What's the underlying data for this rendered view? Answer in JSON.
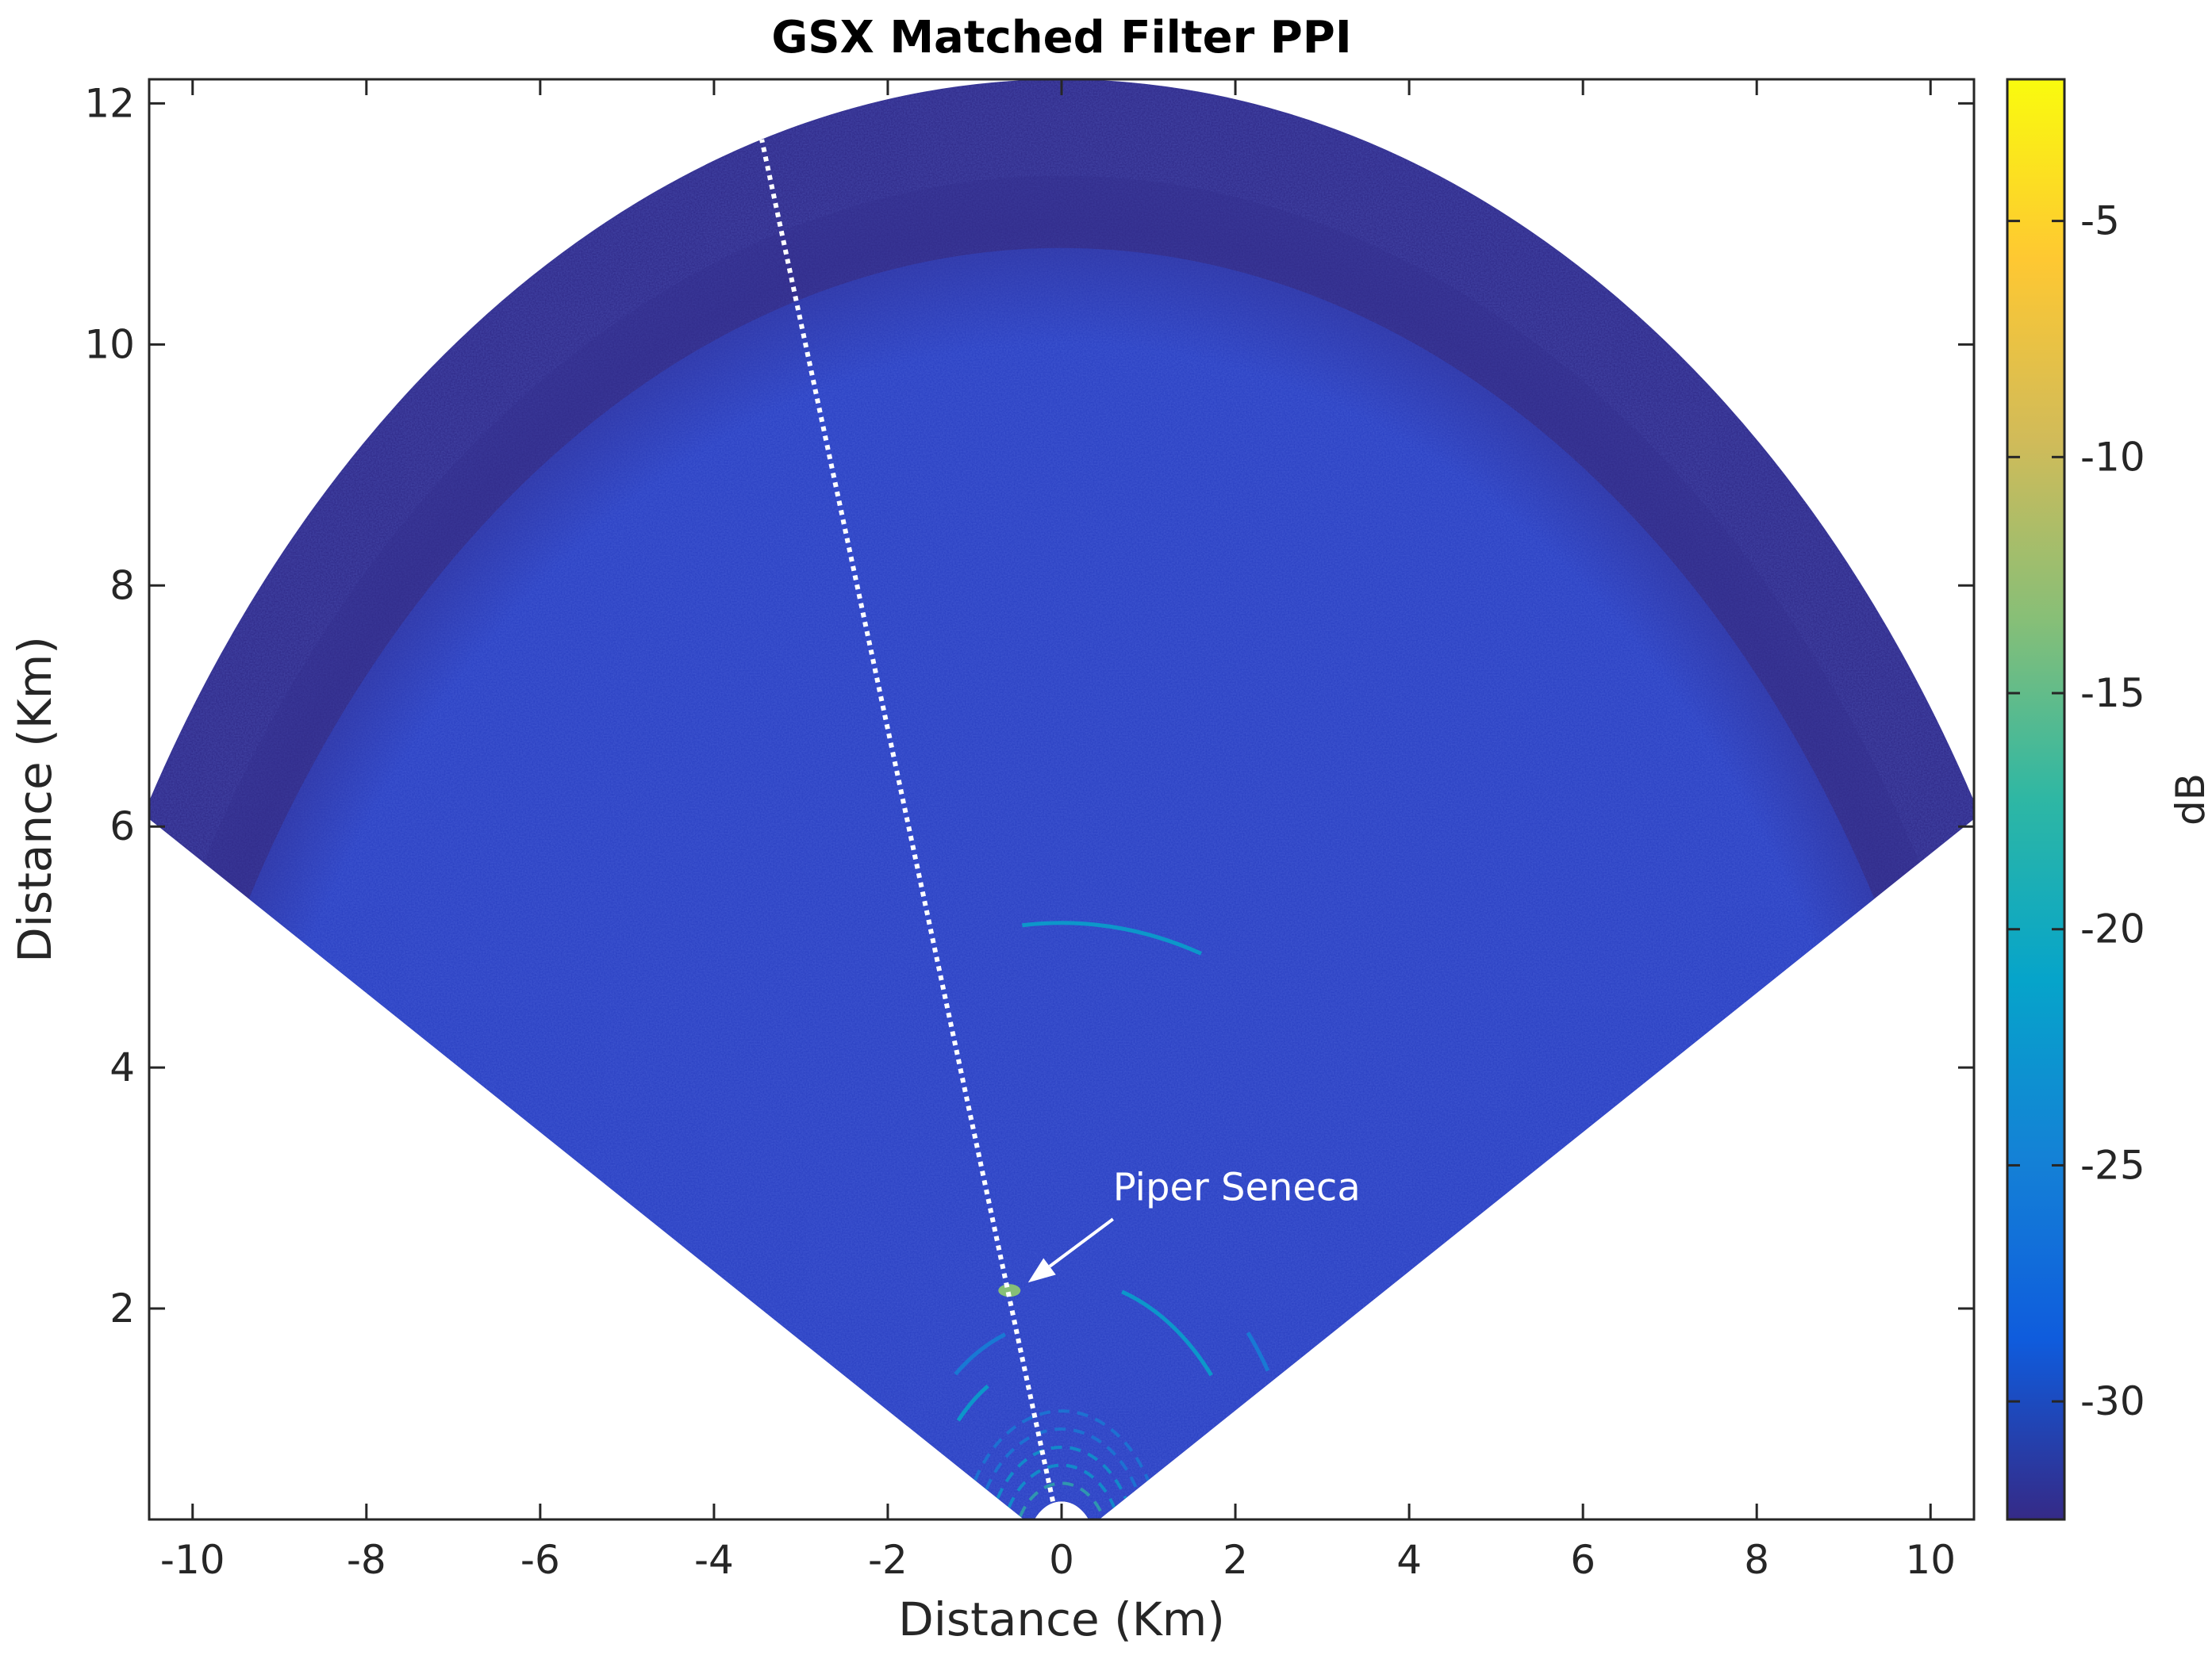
{
  "chart_data": {
    "type": "heatmap",
    "title": "GSX Matched Filter PPI",
    "xlabel": "Distance (Km)",
    "ylabel": "Distance (Km)",
    "xlim": [
      -10.5,
      10.5
    ],
    "ylim": [
      0.25,
      12.2
    ],
    "x_ticks": [
      -10,
      -8,
      -6,
      -4,
      -2,
      0,
      2,
      4,
      6,
      8,
      10
    ],
    "y_ticks": [
      2,
      4,
      6,
      8,
      10,
      12
    ],
    "colorbar": {
      "label": "dB",
      "range": [
        -32.5,
        -2
      ],
      "ticks": [
        -5,
        -10,
        -15,
        -20,
        -25,
        -30
      ],
      "colormap": [
        "#352a87",
        "#0f5cdd",
        "#1481d6",
        "#06a4ca",
        "#2eb7a4",
        "#87bf77",
        "#d1bb59",
        "#fec832",
        "#f9fb0e"
      ]
    },
    "sector": {
      "max_range_km": 12.2,
      "min_range_km": 0.4,
      "half_angle_deg": 60,
      "noise_floor_outer_start_km": 10.8,
      "background_color": "#2d43c4",
      "outer_color": "#322d8c"
    },
    "scan_line": {
      "x0": -0.1,
      "y0": 0.4,
      "x1": -3.45,
      "y1": 11.7
    },
    "annotation": {
      "text": "Piper Seneca",
      "point": [
        -0.55,
        2.15
      ],
      "text_pos": [
        0.5,
        2.9
      ]
    },
    "targets": [
      {
        "x": -0.6,
        "y": 2.15,
        "level_db": -12
      }
    ],
    "arcs": [
      {
        "r": 5.2,
        "from_deg": -5,
        "to_deg": 18,
        "level_db": -22
      },
      {
        "r": 2.25,
        "from_deg": 18,
        "to_deg": 50,
        "level_db": -20
      },
      {
        "r": 2.8,
        "from_deg": 50,
        "to_deg": 58,
        "level_db": -24
      },
      {
        "r": 1.6,
        "from_deg": -48,
        "to_deg": -32,
        "level_db": -22
      },
      {
        "r": 1.9,
        "from_deg": -40,
        "to_deg": -20,
        "level_db": -24
      }
    ]
  }
}
